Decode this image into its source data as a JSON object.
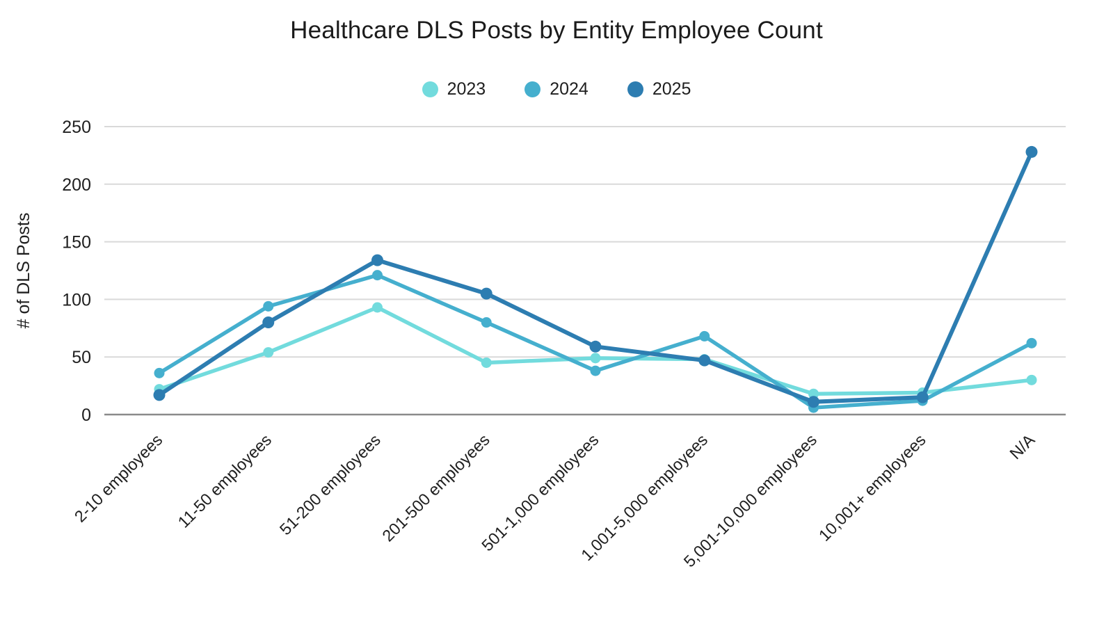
{
  "title": "Healthcare DLS Posts by Entity Employee Count",
  "legend": {
    "items": [
      {
        "label": "2023",
        "color": "#72DBDD"
      },
      {
        "label": "2024",
        "color": "#45AFCE"
      },
      {
        "label": "2025",
        "color": "#2D7DB1"
      }
    ]
  },
  "chart_data": {
    "type": "line",
    "title": "Healthcare DLS Posts by Entity Employee Count",
    "xlabel": "",
    "ylabel": "# of DLS Posts",
    "ylim": [
      0,
      250
    ],
    "yticks": [
      0,
      50,
      100,
      150,
      200,
      250
    ],
    "grid": true,
    "legend_position": "top",
    "categories": [
      "2-10 employees",
      "11-50 employees",
      "51-200 employees",
      "201-500 employees",
      "501-1,000 employees",
      "1,001-5,000 employees",
      "5,001-10,000 employees",
      "10,001+ employees",
      "N/A"
    ],
    "series": [
      {
        "name": "2023",
        "color": "#72DBDD",
        "values": [
          22,
          54,
          93,
          45,
          49,
          48,
          18,
          19,
          30
        ]
      },
      {
        "name": "2024",
        "color": "#45AFCE",
        "values": [
          36,
          94,
          121,
          80,
          38,
          68,
          6,
          12,
          62
        ]
      },
      {
        "name": "2025",
        "color": "#2D7DB1",
        "values": [
          17,
          80,
          134,
          105,
          59,
          47,
          11,
          15,
          228
        ]
      }
    ]
  },
  "colors": {
    "background": "#ffffff",
    "gridline": "#d9d9d9",
    "axis": "#8a8a8a",
    "text": "#1f1f1f"
  }
}
